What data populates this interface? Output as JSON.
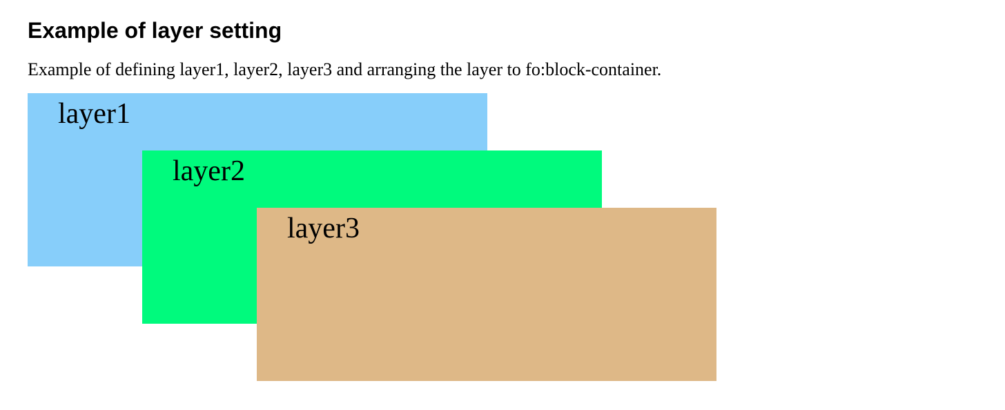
{
  "document": {
    "title": "Example of layer setting",
    "description": "Example of defining layer1, layer2, layer3 and arranging the layer to fo:block-container."
  },
  "layers": [
    {
      "label": "layer1",
      "color": "#87cefa"
    },
    {
      "label": "layer2",
      "color": "#00fa7d"
    },
    {
      "label": "layer3",
      "color": "#deb887"
    }
  ]
}
